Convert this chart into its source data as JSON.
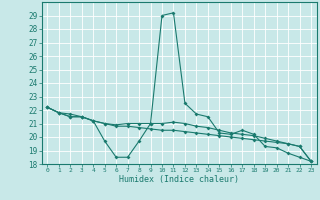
{
  "xlabel": "Humidex (Indice chaleur)",
  "x_values": [
    0,
    1,
    2,
    3,
    4,
    5,
    6,
    7,
    8,
    9,
    10,
    11,
    12,
    13,
    14,
    15,
    16,
    17,
    18,
    19,
    20,
    21,
    22,
    23
  ],
  "series1": [
    22.2,
    21.8,
    21.5,
    21.5,
    21.2,
    19.7,
    18.5,
    18.5,
    19.7,
    21.0,
    29.0,
    29.2,
    22.5,
    21.7,
    21.5,
    20.3,
    20.2,
    20.5,
    20.2,
    19.3,
    19.2,
    18.8,
    18.5,
    18.2
  ],
  "series2": [
    22.2,
    21.8,
    21.5,
    21.5,
    21.2,
    21.0,
    20.9,
    21.0,
    21.0,
    21.0,
    21.0,
    21.1,
    21.0,
    20.8,
    20.7,
    20.5,
    20.3,
    20.2,
    20.1,
    19.9,
    19.7,
    19.5,
    19.3,
    18.2
  ],
  "series3": [
    22.2,
    21.8,
    21.7,
    21.5,
    21.2,
    21.0,
    20.8,
    20.8,
    20.7,
    20.6,
    20.5,
    20.5,
    20.4,
    20.3,
    20.2,
    20.1,
    20.0,
    19.9,
    19.8,
    19.7,
    19.6,
    19.5,
    19.3,
    18.2
  ],
  "line_color": "#1a7a6e",
  "bg_color": "#c8e8e8",
  "grid_color": "#ffffff",
  "ylim": [
    18,
    30
  ],
  "yticks": [
    18,
    19,
    20,
    21,
    22,
    23,
    24,
    25,
    26,
    27,
    28,
    29
  ],
  "xlim": [
    -0.5,
    23.5
  ],
  "xticks": [
    0,
    1,
    2,
    3,
    4,
    5,
    6,
    7,
    8,
    9,
    10,
    11,
    12,
    13,
    14,
    15,
    16,
    17,
    18,
    19,
    20,
    21,
    22,
    23
  ]
}
